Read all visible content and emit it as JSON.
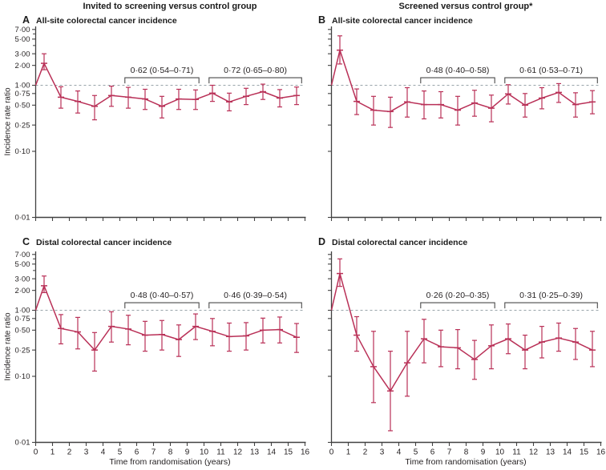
{
  "figure": {
    "column_headers": [
      "Invited to screening versus control group",
      "Screened versus control group*"
    ],
    "ylabel": "Incidence rate ratio",
    "xlabel": "Time from randomisation (years)",
    "colors": {
      "series": "#b93057",
      "reference_line": "#98a4aa",
      "axis": "#414141",
      "bracket": "#4a4a4a",
      "text": "#231f20"
    },
    "y_scale": "log",
    "reference_value": 1.0,
    "y_ticks": [
      {
        "label": "7·00",
        "value": 7.0
      },
      {
        "label": "5·00",
        "value": 5.0
      },
      {
        "label": "3·00",
        "value": 3.0
      },
      {
        "label": "2·00",
        "value": 2.0
      },
      {
        "label": "1·00",
        "value": 1.0
      },
      {
        "label": "0·75",
        "value": 0.75
      },
      {
        "label": "0·50",
        "value": 0.5
      },
      {
        "label": "0·25",
        "value": 0.25
      },
      {
        "label": "0·10",
        "value": 0.1
      },
      {
        "label": "0·01",
        "value": 0.01
      }
    ],
    "y_minor_ticks": [
      6.0,
      4.0
    ],
    "x_ticks": [
      0,
      1,
      2,
      3,
      4,
      5,
      6,
      7,
      8,
      9,
      10,
      11,
      12,
      13,
      14,
      15,
      16
    ],
    "xlim": [
      0,
      16
    ],
    "ylim": [
      0.01,
      8.5
    ]
  },
  "chart_data": [
    {
      "type": "line",
      "panel": "A",
      "title": "All-site colorectal cancer incidence",
      "group": "Invited to screening versus control group",
      "x": [
        0,
        0.5,
        1.5,
        2.5,
        3.5,
        4.5,
        5.5,
        6.5,
        7.5,
        8.5,
        9.5,
        10.5,
        11.5,
        12.5,
        13.5,
        14.5,
        15.5
      ],
      "y": [
        1.0,
        2.15,
        0.66,
        0.57,
        0.48,
        0.7,
        0.66,
        0.62,
        0.48,
        0.62,
        0.61,
        0.76,
        0.56,
        0.68,
        0.8,
        0.64,
        0.7
      ],
      "ci_low": [
        null,
        1.72,
        0.45,
        0.38,
        0.3,
        0.48,
        0.45,
        0.43,
        0.32,
        0.43,
        0.43,
        0.57,
        0.41,
        0.51,
        0.61,
        0.47,
        0.51
      ],
      "ci_high": [
        null,
        3.0,
        0.95,
        0.82,
        0.7,
        0.97,
        0.93,
        0.87,
        0.68,
        0.87,
        0.85,
        1.0,
        0.76,
        0.9,
        1.04,
        0.86,
        0.94
      ],
      "annotations": [
        {
          "label": "0·62 (0·54–0·71)",
          "x_start": 5.3,
          "x_end": 9.7
        },
        {
          "label": "0·72 (0·65–0·80)",
          "x_start": 10.3,
          "x_end": 15.8
        }
      ]
    },
    {
      "type": "line",
      "panel": "B",
      "title": "All-site colorectal cancer incidence",
      "group": "Screened versus control group*",
      "x": [
        0,
        0.5,
        1.5,
        2.5,
        3.5,
        4.5,
        5.5,
        6.5,
        7.5,
        8.5,
        9.5,
        10.5,
        11.5,
        12.5,
        13.5,
        14.5,
        15.5
      ],
      "y": [
        1.0,
        3.4,
        0.57,
        0.42,
        0.4,
        0.56,
        0.51,
        0.51,
        0.42,
        0.54,
        0.45,
        0.74,
        0.5,
        0.64,
        0.78,
        0.51,
        0.56
      ],
      "ci_low": [
        null,
        2.1,
        0.36,
        0.25,
        0.23,
        0.33,
        0.31,
        0.32,
        0.25,
        0.34,
        0.28,
        0.52,
        0.33,
        0.44,
        0.55,
        0.33,
        0.37
      ],
      "ci_high": [
        null,
        5.6,
        0.88,
        0.68,
        0.66,
        0.92,
        0.82,
        0.8,
        0.68,
        0.84,
        0.71,
        1.02,
        0.75,
        0.92,
        1.06,
        0.77,
        0.83
      ],
      "annotations": [
        {
          "label": "0·48 (0·40–0·58)",
          "x_start": 5.3,
          "x_end": 9.7
        },
        {
          "label": "0·61 (0·53–0·71)",
          "x_start": 10.3,
          "x_end": 15.8
        }
      ]
    },
    {
      "type": "line",
      "panel": "C",
      "title": "Distal colorectal cancer incidence",
      "group": "Invited to screening versus control group",
      "x": [
        0,
        0.5,
        1.5,
        2.5,
        3.5,
        4.5,
        5.5,
        6.5,
        7.5,
        8.5,
        9.5,
        10.5,
        11.5,
        12.5,
        13.5,
        14.5,
        15.5
      ],
      "y": [
        1.0,
        2.35,
        0.53,
        0.47,
        0.25,
        0.57,
        0.52,
        0.42,
        0.43,
        0.36,
        0.57,
        0.48,
        0.4,
        0.41,
        0.5,
        0.51,
        0.39
      ],
      "ci_low": [
        null,
        1.85,
        0.31,
        0.26,
        0.12,
        0.33,
        0.3,
        0.24,
        0.25,
        0.2,
        0.36,
        0.29,
        0.24,
        0.25,
        0.32,
        0.32,
        0.23
      ],
      "ci_high": [
        null,
        3.3,
        0.86,
        0.78,
        0.46,
        0.95,
        0.84,
        0.68,
        0.7,
        0.6,
        0.88,
        0.75,
        0.64,
        0.65,
        0.76,
        0.79,
        0.63
      ],
      "annotations": [
        {
          "label": "0·48 (0·40–0·57)",
          "x_start": 5.3,
          "x_end": 9.7
        },
        {
          "label": "0·46 (0·39–0·54)",
          "x_start": 10.3,
          "x_end": 15.8
        }
      ]
    },
    {
      "type": "line",
      "panel": "D",
      "title": "Distal colorectal cancer incidence",
      "group": "Screened versus control group*",
      "x": [
        0,
        0.5,
        1.5,
        2.5,
        3.5,
        4.5,
        5.5,
        6.5,
        7.5,
        8.5,
        9.5,
        10.5,
        11.5,
        12.5,
        13.5,
        14.5,
        15.5
      ],
      "y": [
        1.0,
        3.6,
        0.42,
        0.14,
        0.06,
        0.16,
        0.37,
        0.28,
        0.27,
        0.18,
        0.29,
        0.37,
        0.25,
        0.33,
        0.38,
        0.33,
        0.25
      ],
      "ci_low": [
        null,
        2.3,
        0.24,
        0.04,
        0.015,
        0.05,
        0.16,
        0.14,
        0.13,
        0.09,
        0.13,
        0.22,
        0.13,
        0.19,
        0.24,
        0.18,
        0.14
      ],
      "ci_high": [
        null,
        6.0,
        0.8,
        0.48,
        0.24,
        0.48,
        0.73,
        0.5,
        0.51,
        0.35,
        0.6,
        0.62,
        0.42,
        0.57,
        0.64,
        0.53,
        0.48
      ],
      "annotations": [
        {
          "label": "0·26 (0·20–0·35)",
          "x_start": 5.3,
          "x_end": 9.7
        },
        {
          "label": "0·31 (0·25–0·39)",
          "x_start": 10.3,
          "x_end": 15.8
        }
      ]
    }
  ]
}
